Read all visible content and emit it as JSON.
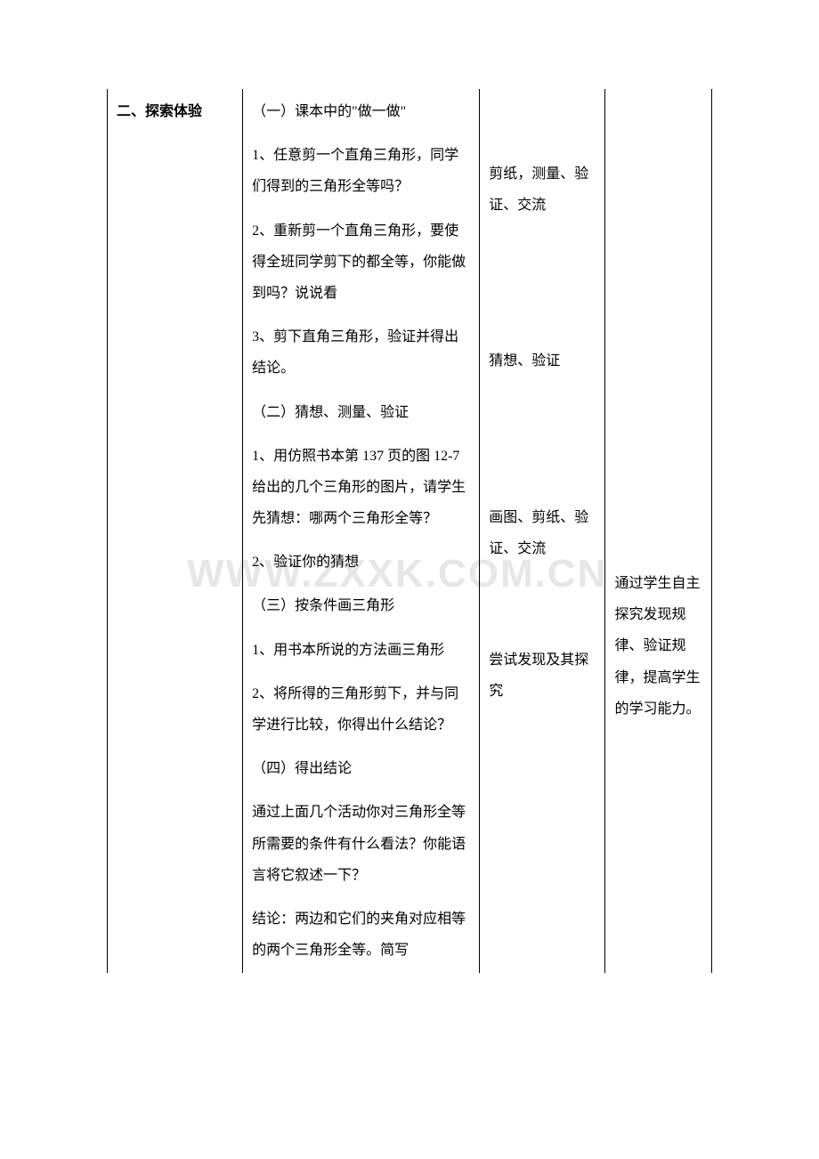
{
  "watermark": "WWW.ZXXK.COM.CN",
  "col1": {
    "heading": "二、探索体验"
  },
  "col2": {
    "s1_title": "（一）课本中的\"做一做\"",
    "s1_p1": "1、任意剪一个直角三角形，同学们得到的三角形全等吗？",
    "s1_p2": "2、重新剪一个直角三角形，要使得全班同学剪下的都全等，你能做到吗？说说看",
    "s1_p3": "3、剪下直角三角形，验证并得出结论。",
    "s2_title": "（二）猜想、测量、验证",
    "s2_p1": "1、用仿照书本第 137 页的图 12-7 给出的几个三角形的图片，请学生先猜想：哪两个三角形全等？",
    "s2_p2": "2、验证你的猜想",
    "s3_title": "（三）按条件画三角形",
    "s3_p1": "1、用书本所说的方法画三角形",
    "s3_p2": "2、将所得的三角形剪下，并与同学进行比较，你得出什么结论？",
    "s4_title": "（四）得出结论",
    "s4_p1": "通过上面几个活动你对三角形全等所需要的条件有什么看法？你能语言将它叙述一下？",
    "s4_p2": "结论：两边和它们的夹角对应相等的两个三角形全等。简写"
  },
  "col3": {
    "b1": "剪纸，测量、验证、交流",
    "b2": "猜想、验证",
    "b3": "画图、剪纸、验证、交流",
    "b4": "尝试发现及其探究"
  },
  "col4": {
    "b1": "通过学生自主探究发现规律、验证规律，提高学生的学习能力。"
  }
}
